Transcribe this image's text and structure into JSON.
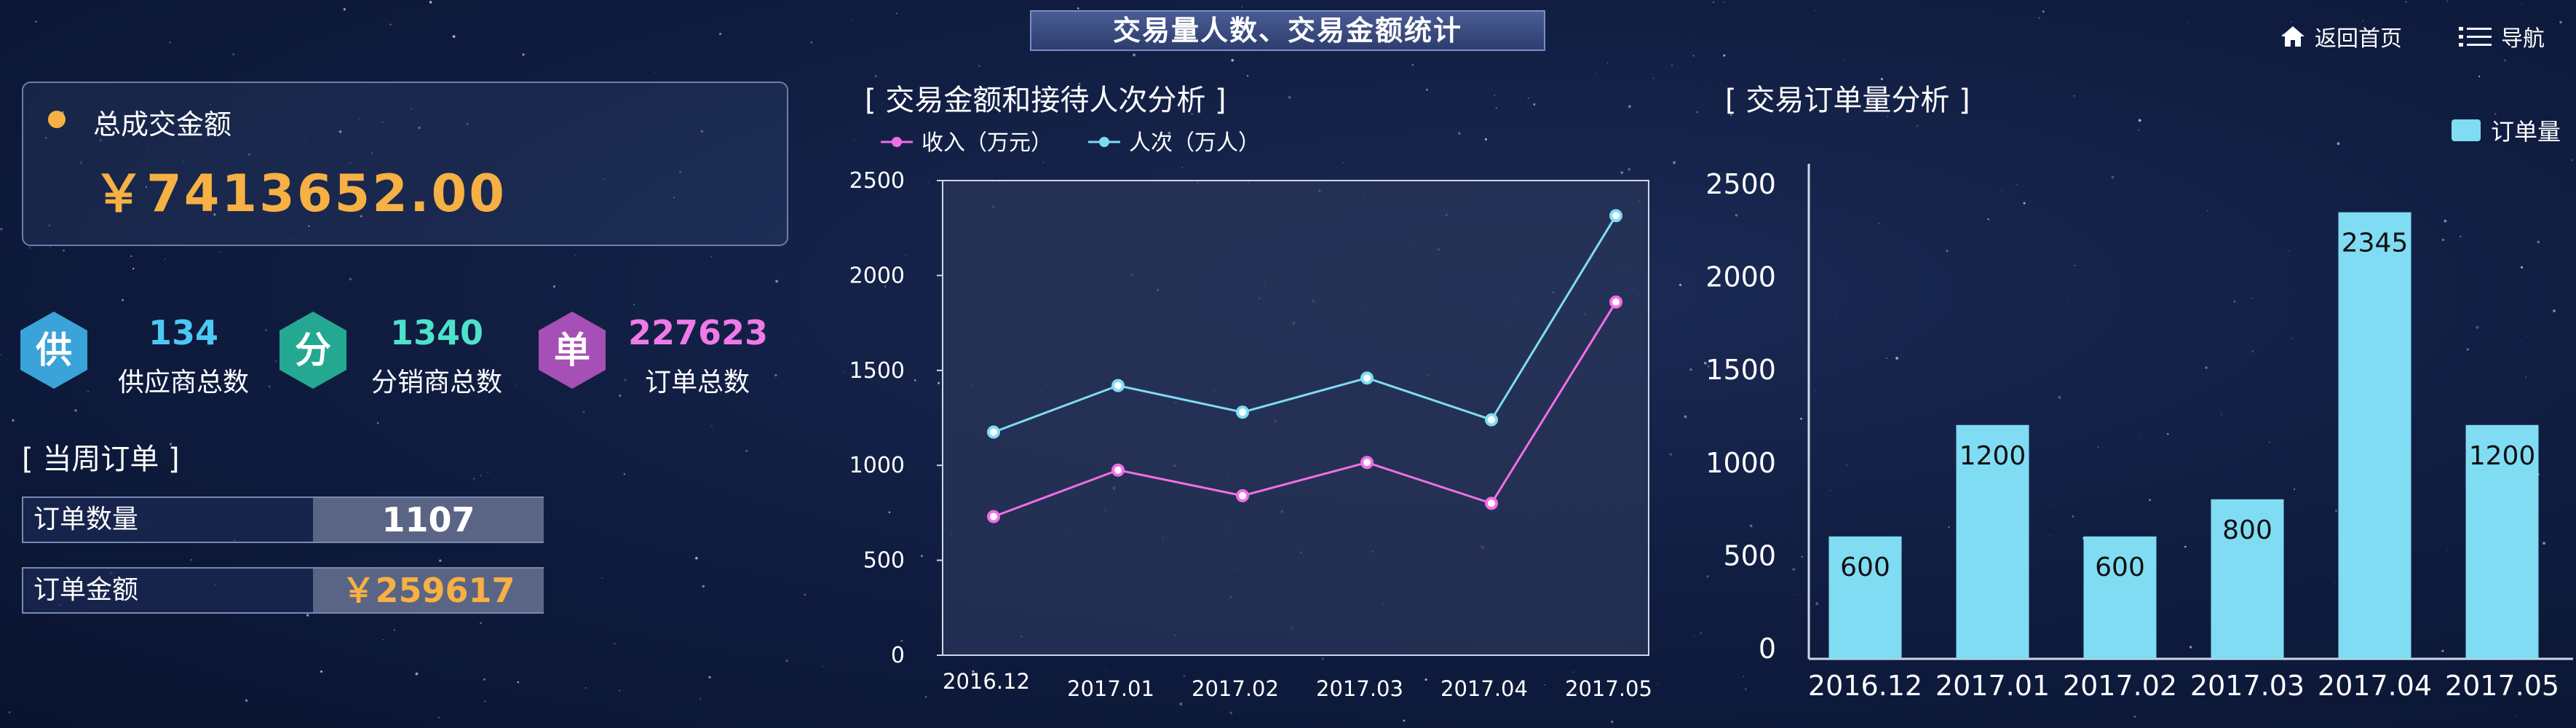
{
  "header": {
    "title": "交易量人数、交易金额统计"
  },
  "nav": {
    "home_label": "返回首页",
    "menu_label": "导航"
  },
  "summary": {
    "label": "总成交金额",
    "value": "￥7413652.00",
    "accent": "#f6b043"
  },
  "stats": [
    {
      "char": "供",
      "value": "134",
      "label": "供应商总数",
      "color": "#3aa3d9",
      "value_color": "#4cc8f5"
    },
    {
      "char": "分",
      "value": "1340",
      "label": "分销商总数",
      "color": "#25a892",
      "value_color": "#4ee2c9"
    },
    {
      "char": "单",
      "value": "227623",
      "label": "订单总数",
      "color": "#a64fb6",
      "value_color": "#ef7ae8"
    }
  ],
  "weekly": {
    "title": "[ 当周订单 ]",
    "rows": [
      {
        "label": "订单数量",
        "value": "1107",
        "color": "#ffffff"
      },
      {
        "label": "订单金额",
        "value": "￥259617",
        "color": "#f6b043"
      }
    ]
  },
  "chart_data": [
    {
      "type": "line",
      "title": "[ 交易金额和接待人次分析 ]",
      "categories": [
        "2016.12",
        "2017.01",
        "2017.02",
        "2017.03",
        "2017.04",
        "2017.05"
      ],
      "series": [
        {
          "name": "收入（万元）",
          "values": [
            730,
            975,
            840,
            1015,
            800,
            1860
          ],
          "color": "#f26ee6"
        },
        {
          "name": "人次（万人）",
          "values": [
            1175,
            1420,
            1280,
            1460,
            1240,
            2315
          ],
          "color": "#7fdcf3"
        }
      ],
      "y_ticks": [
        "0",
        "500",
        "1000",
        "1500",
        "2000",
        "2500"
      ],
      "ylim": [
        0,
        2500
      ],
      "legend": "top-left",
      "grid": false
    },
    {
      "type": "bar",
      "title": "[ 交易订单量分析 ]",
      "categories": [
        "2016.12",
        "2017.01",
        "2017.02",
        "2017.03",
        "2017.04",
        "2017.05"
      ],
      "series": [
        {
          "name": "订单量",
          "values": [
            600,
            1200,
            600,
            800,
            2345,
            1200
          ],
          "color": "#7fdcf3"
        }
      ],
      "data_labels": [
        "600",
        "1200",
        "600",
        "800",
        "2345",
        "1200"
      ],
      "y_ticks": [
        "0",
        "500",
        "1000",
        "1500",
        "2000",
        "2500"
      ],
      "ylim": [
        0,
        2500
      ],
      "legend": "top-right",
      "grid": false
    }
  ]
}
